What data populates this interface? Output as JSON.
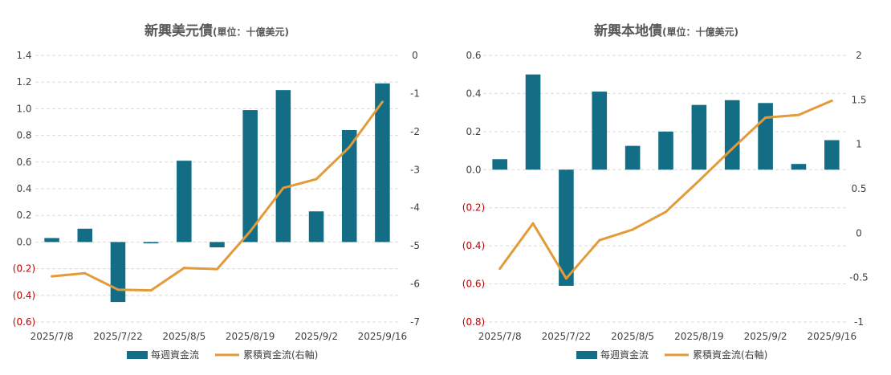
{
  "legend": {
    "bars": "每週資金流",
    "line": "累積資金流(右軸)"
  },
  "colors": {
    "bar": "#136e85",
    "line": "#e39b3a",
    "grid": "#d9d9d9",
    "negative_tick": "#c00000",
    "tick": "#404040",
    "title": "#595959"
  },
  "chart_data": [
    {
      "type": "bar+line",
      "title": "新興美元債",
      "unit": "(單位：十億美元)",
      "x": [
        "2025/7/8",
        "2025/7/15",
        "2025/7/22",
        "2025/7/29",
        "2025/8/5",
        "2025/8/12",
        "2025/8/19",
        "2025/8/26",
        "2025/9/2",
        "2025/9/9",
        "2025/9/16"
      ],
      "x_tick_labels": [
        "2025/7/8",
        "2025/7/22",
        "2025/8/5",
        "2025/8/19",
        "2025/9/2",
        "2025/9/16"
      ],
      "series": [
        {
          "name": "每週資金流",
          "axis": "left",
          "values": [
            0.03,
            0.1,
            -0.45,
            -0.01,
            0.61,
            -0.04,
            0.99,
            1.14,
            0.23,
            0.84,
            1.19
          ]
        },
        {
          "name": "累積資金流(右軸)",
          "axis": "right",
          "values": [
            -5.8,
            -5.72,
            -6.15,
            -6.17,
            -5.58,
            -5.61,
            -4.62,
            -3.48,
            -3.25,
            -2.41,
            -1.22
          ]
        }
      ],
      "left_axis": {
        "ylim": [
          -0.6,
          1.4
        ],
        "ticks": [
          "1.4",
          "1.2",
          "1.0",
          "0.8",
          "0.6",
          "0.4",
          "0.2",
          "0.0",
          "(0.2)",
          "(0.4)",
          "(0.6)"
        ],
        "tick_values": [
          1.4,
          1.2,
          1.0,
          0.8,
          0.6,
          0.4,
          0.2,
          0,
          -0.2,
          -0.4,
          -0.6
        ]
      },
      "right_axis": {
        "ylim": [
          -7,
          0
        ],
        "ticks": [
          "0",
          "-1",
          "-2",
          "-3",
          "-4",
          "-5",
          "-6",
          "-7"
        ],
        "tick_values": [
          0,
          -1,
          -2,
          -3,
          -4,
          -5,
          -6,
          -7
        ]
      },
      "grid": true,
      "legend_position": "bottom"
    },
    {
      "type": "bar+line",
      "title": "新興本地債",
      "unit": "(單位：十億美元)",
      "x": [
        "2025/7/8",
        "2025/7/15",
        "2025/7/22",
        "2025/7/29",
        "2025/8/5",
        "2025/8/12",
        "2025/8/19",
        "2025/8/26",
        "2025/9/2",
        "2025/9/9",
        "2025/9/16"
      ],
      "x_tick_labels": [
        "2025/7/8",
        "2025/7/22",
        "2025/8/5",
        "2025/8/19",
        "2025/9/2",
        "2025/9/16"
      ],
      "series": [
        {
          "name": "每週資金流",
          "axis": "left",
          "values": [
            0.055,
            0.5,
            -0.61,
            0.41,
            0.125,
            0.2,
            0.34,
            0.365,
            0.35,
            0.03,
            0.155
          ]
        },
        {
          "name": "累積資金流(右軸)",
          "axis": "right",
          "values": [
            -0.4,
            0.11,
            -0.51,
            -0.08,
            0.04,
            0.24,
            0.59,
            0.95,
            1.3,
            1.33,
            1.49
          ]
        }
      ],
      "left_axis": {
        "ylim": [
          -0.8,
          0.6
        ],
        "ticks": [
          "0.6",
          "0.4",
          "0.2",
          "0.0",
          "(0.2)",
          "(0.4)",
          "(0.6)",
          "(0.8)"
        ],
        "tick_values": [
          0.6,
          0.4,
          0.2,
          0,
          -0.2,
          -0.4,
          -0.6,
          -0.8
        ]
      },
      "right_axis": {
        "ylim": [
          -1,
          2
        ],
        "ticks": [
          "2",
          "1.5",
          "1",
          "0.5",
          "0",
          "-0.5",
          "-1"
        ],
        "tick_values": [
          2,
          1.5,
          1,
          0.5,
          0,
          -0.5,
          -1
        ]
      },
      "grid": true,
      "legend_position": "bottom"
    }
  ]
}
